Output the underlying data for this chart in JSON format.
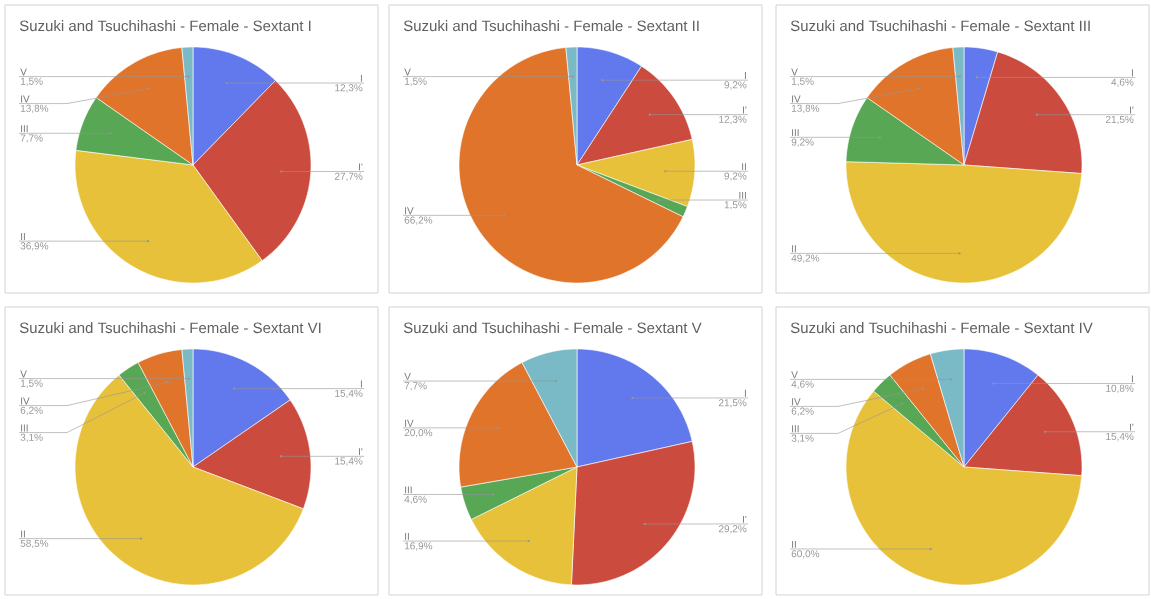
{
  "chart_data": [
    {
      "type": "pie",
      "title": "Suzuki and Tsuchihashi - Female - Sextant I",
      "categories": [
        "I",
        "I'",
        "II",
        "III",
        "IV",
        "V"
      ],
      "values": [
        12.3,
        27.7,
        36.9,
        7.7,
        13.8,
        1.5
      ],
      "value_labels": [
        "12,3%",
        "27,7%",
        "36,9%",
        "7,7%",
        "13,8%",
        "1,5%"
      ],
      "colors": [
        "#6179ed",
        "#cb4b3e",
        "#e8c13a",
        "#57a755",
        "#e0742b",
        "#7ab9c6"
      ]
    },
    {
      "type": "pie",
      "title": "Suzuki and Tsuchihashi - Female - Sextant II",
      "categories": [
        "I",
        "I'",
        "II",
        "III",
        "IV",
        "V"
      ],
      "values": [
        9.2,
        12.3,
        9.2,
        1.5,
        66.2,
        1.5
      ],
      "value_labels": [
        "9,2%",
        "12,3%",
        "9,2%",
        "1,5%",
        "66,2%",
        "1,5%"
      ],
      "colors": [
        "#6179ed",
        "#cb4b3e",
        "#e8c13a",
        "#57a755",
        "#e0742b",
        "#7ab9c6"
      ]
    },
    {
      "type": "pie",
      "title": "Suzuki and Tsuchihashi - Female - Sextant III",
      "categories": [
        "I",
        "I'",
        "II",
        "III",
        "IV",
        "V"
      ],
      "values": [
        4.6,
        21.5,
        49.2,
        9.2,
        13.8,
        1.5
      ],
      "value_labels": [
        "4,6%",
        "21,5%",
        "49,2%",
        "9,2%",
        "13,8%",
        "1,5%"
      ],
      "colors": [
        "#6179ed",
        "#cb4b3e",
        "#e8c13a",
        "#57a755",
        "#e0742b",
        "#7ab9c6"
      ]
    },
    {
      "type": "pie",
      "title": "Suzuki and Tsuchihashi - Female - Sextant VI",
      "categories": [
        "I",
        "I'",
        "II",
        "III",
        "IV",
        "V"
      ],
      "values": [
        15.4,
        15.4,
        58.5,
        3.1,
        6.2,
        1.5
      ],
      "value_labels": [
        "15,4%",
        "15,4%",
        "58,5%",
        "3,1%",
        "6,2%",
        "1,5%"
      ],
      "colors": [
        "#6179ed",
        "#cb4b3e",
        "#e8c13a",
        "#57a755",
        "#e0742b",
        "#7ab9c6"
      ]
    },
    {
      "type": "pie",
      "title": "Suzuki and Tsuchihashi - Female - Sextant V",
      "categories": [
        "I",
        "I'",
        "II",
        "III",
        "IV",
        "V"
      ],
      "values": [
        21.5,
        29.2,
        16.9,
        4.6,
        20.0,
        7.7
      ],
      "value_labels": [
        "21,5%",
        "29,2%",
        "16,9%",
        "4,6%",
        "20,0%",
        "7,7%"
      ],
      "colors": [
        "#6179ed",
        "#cb4b3e",
        "#e8c13a",
        "#57a755",
        "#e0742b",
        "#7ab9c6"
      ]
    },
    {
      "type": "pie",
      "title": "Suzuki and Tsuchihashi - Female - Sextant IV",
      "categories": [
        "I",
        "I'",
        "II",
        "III",
        "IV",
        "V"
      ],
      "values": [
        10.8,
        15.4,
        60.0,
        3.1,
        6.2,
        4.6
      ],
      "value_labels": [
        "10,8%",
        "15,4%",
        "60,0%",
        "3,1%",
        "6,2%",
        "4,6%"
      ],
      "colors": [
        "#6179ed",
        "#cb4b3e",
        "#e8c13a",
        "#57a755",
        "#e0742b",
        "#7ab9c6"
      ]
    }
  ]
}
